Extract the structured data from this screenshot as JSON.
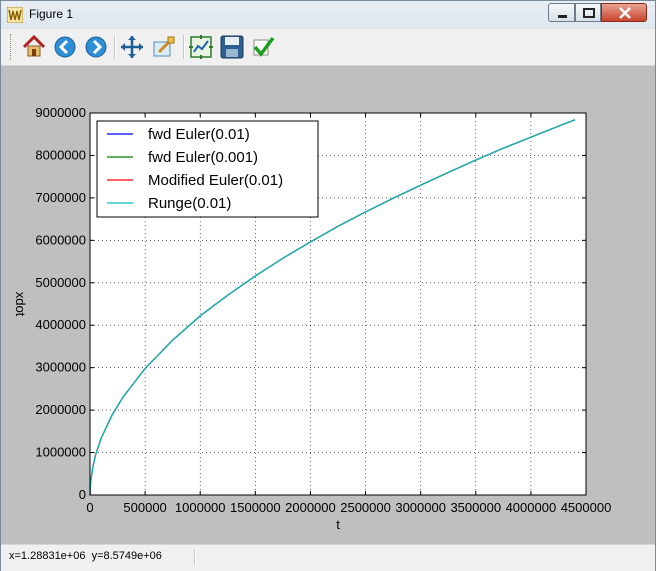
{
  "window": {
    "title": "Figure 1",
    "icon": "matplotlib-icon",
    "buttons": [
      "minimize-icon",
      "maximize-icon",
      "close-icon"
    ]
  },
  "toolbar": {
    "buttons": [
      {
        "name": "home-button",
        "icon": "home-icon"
      },
      {
        "name": "back-button",
        "icon": "back-arrow-icon"
      },
      {
        "name": "forward-button",
        "icon": "forward-arrow-icon"
      },
      {
        "name": "pan-button",
        "icon": "pan-move-icon"
      },
      {
        "name": "zoom-button",
        "icon": "zoom-rectangle-icon"
      },
      {
        "name": "subplots-button",
        "icon": "configure-subplots-icon"
      },
      {
        "name": "save-button",
        "icon": "floppy-disk-icon"
      },
      {
        "name": "edit-parameters-button",
        "icon": "checkmark-icon"
      }
    ]
  },
  "status": {
    "text": "x=1.28831e+06  y=8.5749e+06"
  },
  "colors": {
    "figure_background": "#bfbfbf",
    "axes_background": "#ffffff",
    "fwd_euler_001": "#0000ff",
    "fwd_euler_0001": "#008000",
    "modified_euler": "#ff0000",
    "runge": "#00bfbf"
  },
  "chart_data": {
    "type": "line",
    "xlabel": "t",
    "ylabel": "xdot",
    "xlim": [
      0,
      4500000
    ],
    "ylim": [
      0,
      9000000
    ],
    "xticks": [
      "0",
      "500000",
      "1000000",
      "1500000",
      "2000000",
      "2500000",
      "3000000",
      "3500000",
      "4000000",
      "4500000"
    ],
    "yticks": [
      "0",
      "1000000",
      "2000000",
      "3000000",
      "4000000",
      "5000000",
      "6000000",
      "7000000",
      "8000000",
      "9000000"
    ],
    "grid": true,
    "legend_position": "upper-left",
    "x": [
      0,
      5000,
      25000,
      50000,
      100000,
      200000,
      300000,
      500000,
      750000,
      1000000,
      1250000,
      1500000,
      1750000,
      2000000,
      2250000,
      2500000,
      2750000,
      3000000,
      3250000,
      3500000,
      3750000,
      4000000,
      4250000,
      4400000
    ],
    "series": [
      {
        "name": "fwd Euler(0.01)",
        "color": "#0000ff",
        "y": [
          0,
          300000,
          650000,
          940000,
          1330000,
          1880000,
          2310000,
          2980000,
          3650000,
          4220000,
          4710000,
          5160000,
          5580000,
          5960000,
          6330000,
          6670000,
          6990000,
          7300000,
          7600000,
          7890000,
          8170000,
          8430000,
          8690000,
          8840000
        ]
      },
      {
        "name": "fwd Euler(0.001)",
        "color": "#008000",
        "y": [
          0,
          300000,
          650000,
          940000,
          1330000,
          1880000,
          2310000,
          2980000,
          3650000,
          4220000,
          4710000,
          5160000,
          5580000,
          5960000,
          6330000,
          6670000,
          6990000,
          7300000,
          7600000,
          7890000,
          8170000,
          8430000,
          8690000,
          8840000
        ]
      },
      {
        "name": "Modified Euler(0.01)",
        "color": "#ff0000",
        "y": [
          0,
          300000,
          650000,
          940000,
          1330000,
          1880000,
          2310000,
          2980000,
          3650000,
          4220000,
          4710000,
          5160000,
          5580000,
          5960000,
          6330000,
          6670000,
          6990000,
          7300000,
          7600000,
          7890000,
          8170000,
          8430000,
          8690000,
          8840000
        ]
      },
      {
        "name": "Runge(0.01)",
        "color": "#00bfbf",
        "y": [
          0,
          300000,
          650000,
          940000,
          1330000,
          1880000,
          2310000,
          2980000,
          3650000,
          4220000,
          4710000,
          5160000,
          5580000,
          5960000,
          6330000,
          6670000,
          6990000,
          7300000,
          7600000,
          7890000,
          8170000,
          8430000,
          8690000,
          8840000
        ]
      }
    ]
  }
}
